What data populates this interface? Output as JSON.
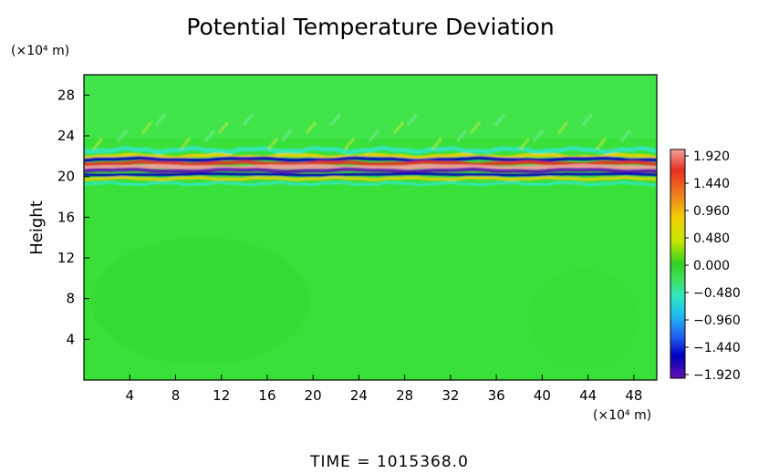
{
  "chart_data": {
    "type": "heatmap",
    "title": "Potential Temperature Deviation",
    "ylabel": "Height",
    "x_unit": "(×10⁴ m)",
    "y_unit": "(×10⁴ m)",
    "x_ticks": [
      "4",
      "8",
      "12",
      "16",
      "20",
      "24",
      "28",
      "32",
      "36",
      "40",
      "44",
      "48"
    ],
    "y_ticks": [
      "4",
      "8",
      "12",
      "16",
      "20",
      "24",
      "28"
    ],
    "xlim": [
      0,
      50
    ],
    "ylim": [
      0,
      30
    ],
    "colorbar": {
      "labels": [
        "1.920",
        "1.440",
        "0.960",
        "0.480",
        "0.000",
        "−0.480",
        "−0.960",
        "−1.440",
        "−1.920"
      ],
      "range": [
        -1.92,
        1.92
      ],
      "colors": [
        "#f4a0a0",
        "#e83020",
        "#f08020",
        "#f0d000",
        "#c8e800",
        "#30d020",
        "#40e060",
        "#30e8c0",
        "#20c0f0",
        "#2060f0",
        "#0000c0",
        "#6010b0"
      ]
    },
    "background_value": 0.3,
    "features": [
      {
        "kind": "positive-band",
        "y_center": 21.0,
        "value": 1.9
      },
      {
        "kind": "negative-band",
        "y_center": 20.3,
        "value": -1.9
      },
      {
        "kind": "negative-band",
        "y_center": 21.7,
        "value": -1.5
      }
    ],
    "footer": "TIME  =  1015368.0"
  }
}
